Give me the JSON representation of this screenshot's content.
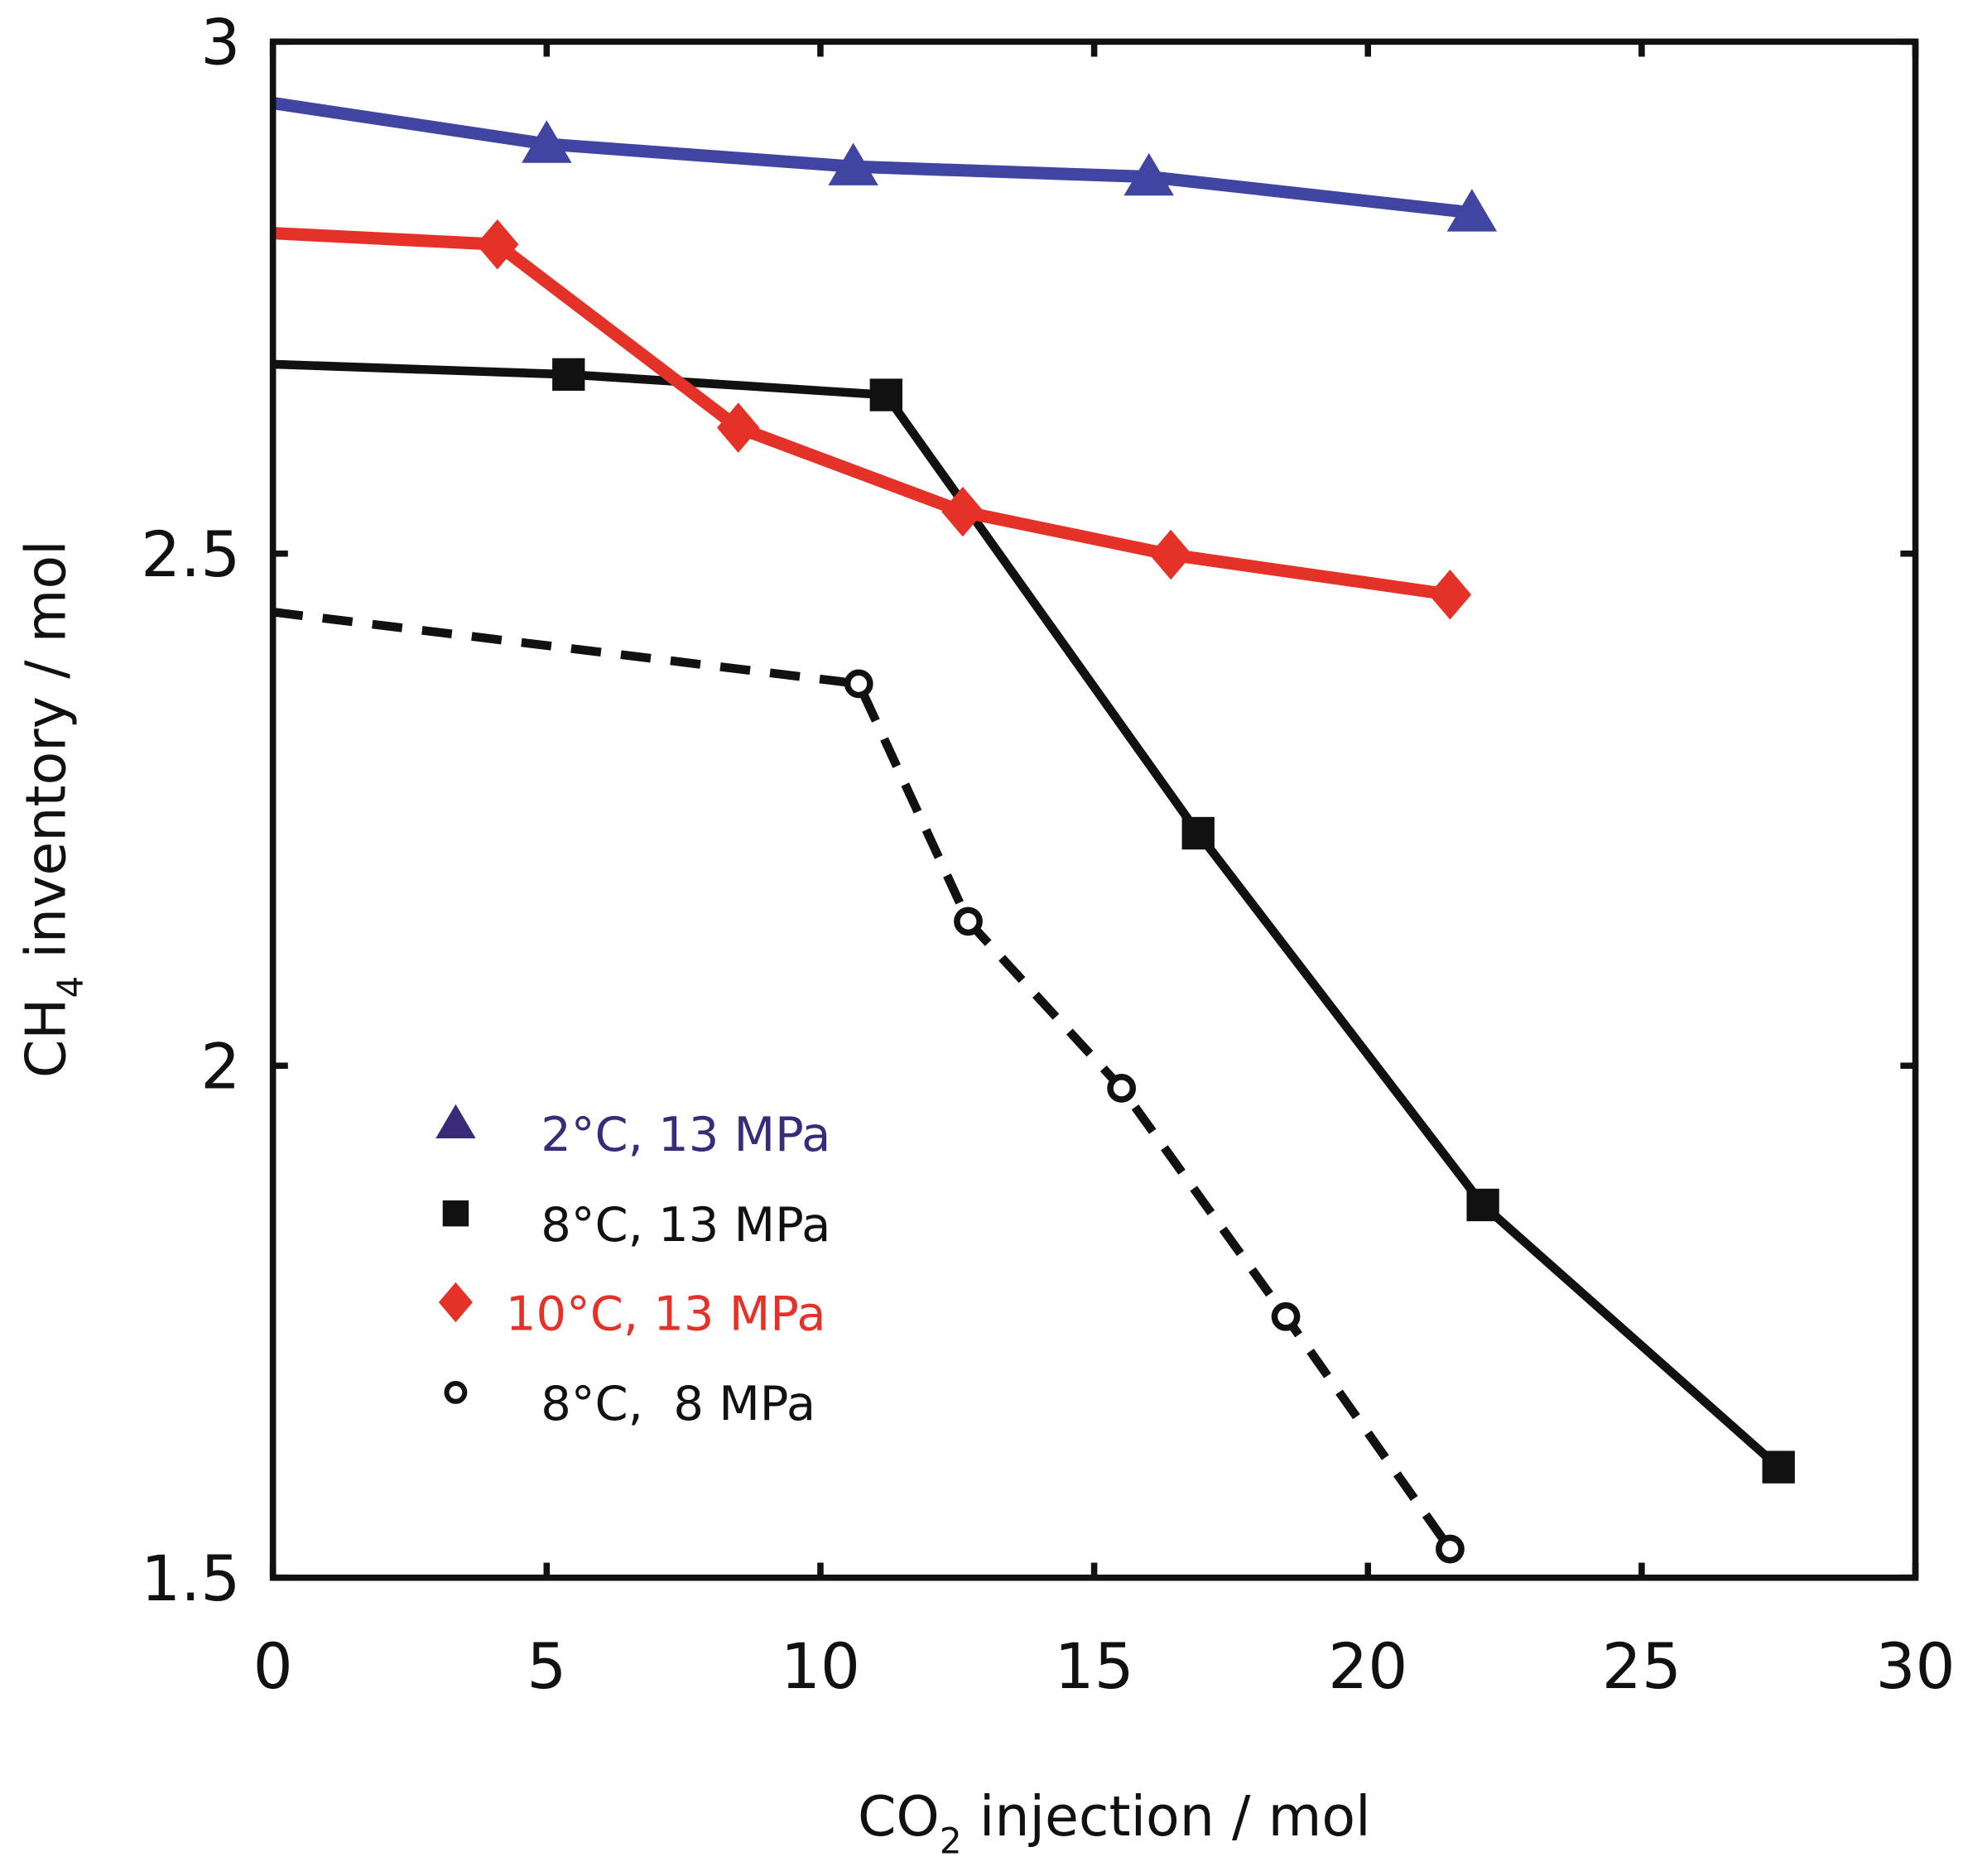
{
  "chart_data": {
    "type": "line",
    "title": "",
    "xlabel": {
      "main": "CO",
      "sub": "2",
      "rest": " injection / mol"
    },
    "ylabel": {
      "main": "CH",
      "sub": "4",
      "rest": " inventory / mol"
    },
    "xlim": [
      0,
      30
    ],
    "ylim": [
      1.5,
      3
    ],
    "xticks": [
      "0",
      "5",
      "10",
      "15",
      "20",
      "25",
      "30"
    ],
    "yticks": [
      "1.5",
      "2",
      "2.5",
      "3"
    ],
    "grid": false,
    "legend_position": "bottom-left",
    "series": [
      {
        "name": "2°C, 13 MPa",
        "color": "#3f45a0",
        "text_color": "#3a2a7a",
        "marker": "triangle",
        "dashed": false,
        "x": [
          0,
          5.0,
          10.6,
          16.0,
          21.9
        ],
        "y": [
          2.94,
          2.9,
          2.878,
          2.868,
          2.833
        ],
        "marker_from": 1
      },
      {
        "name": "8°C, 13 MPa",
        "color": "#111111",
        "text_color": "#111111",
        "marker": "square",
        "dashed": false,
        "x": [
          0,
          5.4,
          11.2,
          16.9,
          22.1,
          27.5
        ],
        "y": [
          2.685,
          2.675,
          2.655,
          2.227,
          1.864,
          1.608
        ],
        "marker_from": 1
      },
      {
        "name": "10°C, 13 MPa",
        "color": "#e53228",
        "text_color": "#e53228",
        "marker": "diamond",
        "dashed": false,
        "x": [
          0,
          4.1,
          8.5,
          12.6,
          16.4,
          21.5
        ],
        "y": [
          2.813,
          2.802,
          2.623,
          2.541,
          2.499,
          2.46
        ],
        "marker_from": 1
      },
      {
        "name": "8°C,  8 MPa",
        "color": "#111111",
        "text_color": "#111111",
        "marker": "circle",
        "dashed": true,
        "x": [
          0,
          10.7,
          12.7,
          15.5,
          18.5,
          21.5
        ],
        "y": [
          2.443,
          2.373,
          2.141,
          1.978,
          1.755,
          1.528
        ],
        "marker_from": 1
      }
    ]
  }
}
